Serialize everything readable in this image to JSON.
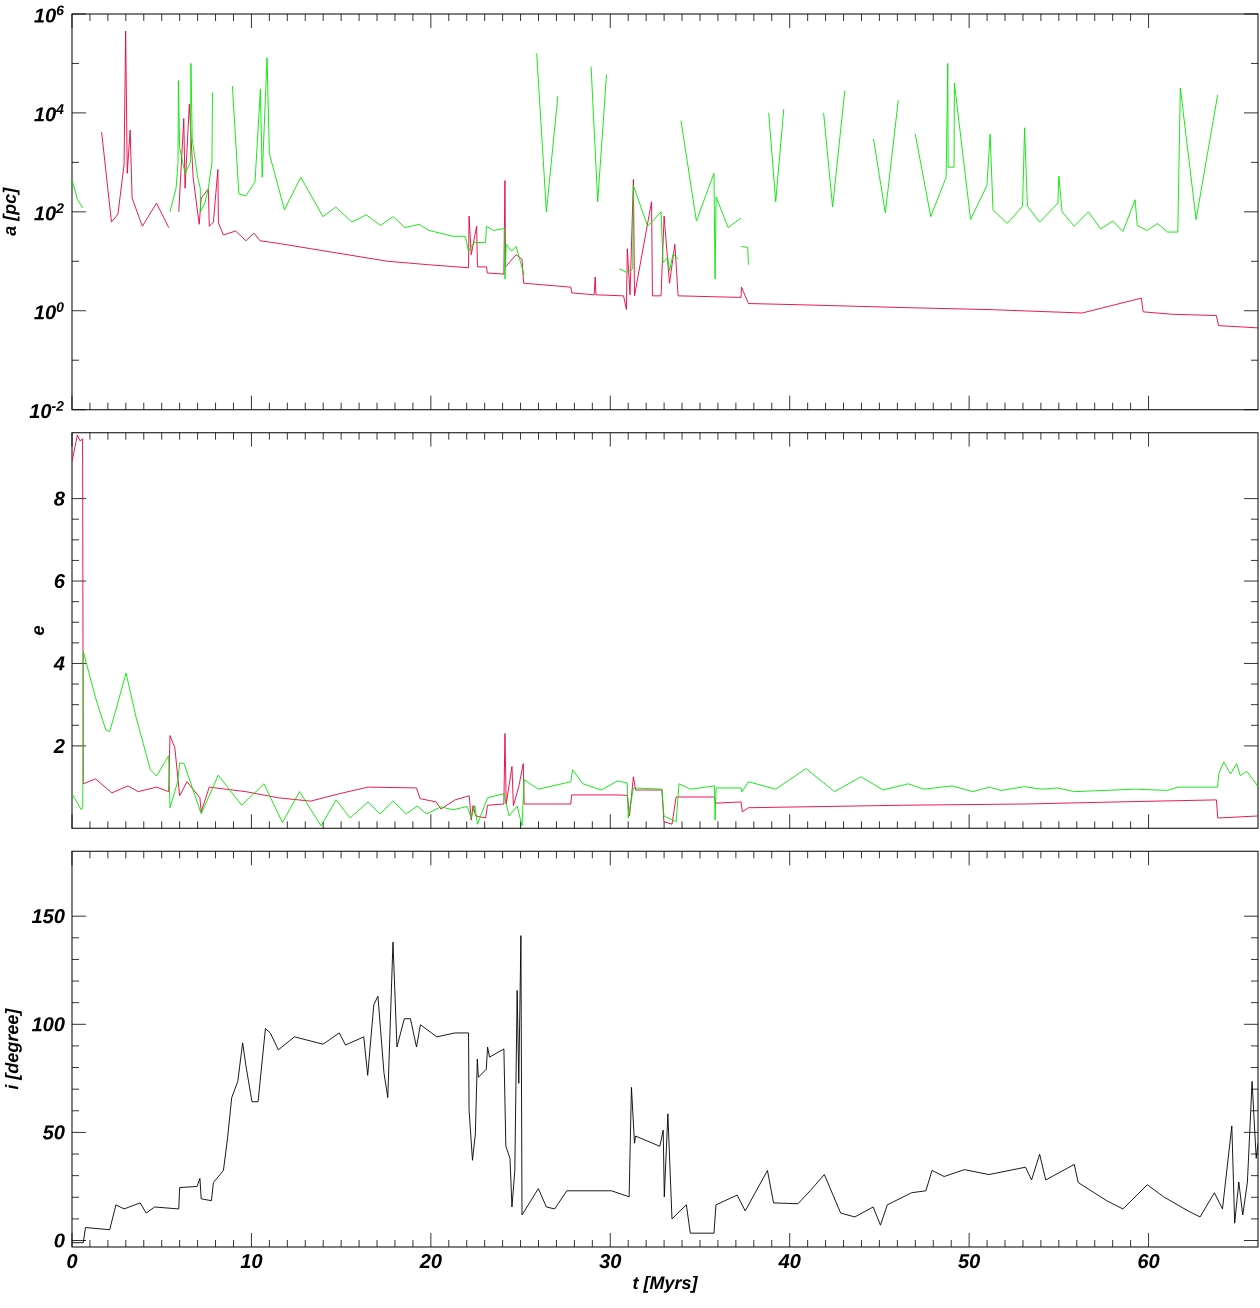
{
  "chart_data": [
    {
      "type": "line",
      "ylabel": "a [pc]",
      "log": true,
      "tick_labels": "y",
      "xlim": [
        0,
        66.1
      ],
      "xticks": [
        0,
        10,
        20,
        30,
        40,
        50,
        60
      ],
      "ylim": [
        0.01,
        1000000
      ],
      "yticks": [
        {
          "value": 0.01,
          "label": "10$^{-2}$"
        },
        {
          "value": 1,
          "label": "10$^{0}$"
        },
        {
          "value": 100,
          "label": "10$^{2}$"
        },
        {
          "value": 10000,
          "label": "10$^{4}$"
        },
        {
          "value": 1000000,
          "label": "10$^{6}$"
        }
      ],
      "series": [
        {
          "color": "#e6003c",
          "x": [
            1.65,
            2.2,
            2.56,
            2.9,
            2.99,
            3.08,
            3.24,
            3.35,
            3.92,
            4.71,
            5.39,
            5.7,
            5.95,
            6.23,
            6.3,
            6.54,
            6.75,
            7.09,
            7.2,
            7.6,
            7.65,
            7.88,
            8.13,
            8.16,
            8.44,
            9.12,
            9.69,
            10.14,
            10.48,
            11.5,
            13.3,
            15.35,
            17.6,
            19.9,
            22.1,
            22.13,
            22.25,
            22.55,
            22.6,
            23.1,
            23.15,
            24.07,
            24.13,
            24.16,
            24.75,
            25.08,
            25.17,
            27.8,
            27.85,
            29.1,
            29.16,
            29.2,
            30.74,
            30.9,
            30.95,
            31.1,
            31.29,
            31.35,
            32.3,
            32.35,
            32.83,
            33.0,
            33.3,
            33.6,
            33.78,
            37.29,
            37.31,
            37.7,
            41.3,
            46.3,
            51.3,
            56.3,
            59.6,
            59.7,
            61.3,
            63.78,
            63.9,
            66.1
          ],
          "values": [
            4100,
            62,
            90,
            880,
            450000,
            600,
            4500,
            190,
            51,
            150,
            48,
            null,
            100,
            7700,
            300,
            15000,
            500,
            56,
            190,
            290,
            51,
            62,
            720,
            60,
            34,
            41,
            26,
            37,
            26,
            23,
            18,
            13.6,
            10,
            8.5,
            7.4,
            82,
            13.6,
            51,
            7.7,
            7.7,
            5.8,
            5.5,
            430,
            7.7,
            13.6,
            11,
            3.6,
            3,
            2.3,
            2.1,
            4.8,
            2.1,
            2.0,
            1.06,
            18,
            2.1,
            450,
            2,
            160,
            2,
            2,
            82,
            3.6,
            22,
            2,
            1.86,
            3,
            1.4,
            1.3,
            1.16,
            1.05,
            0.9,
            1.8,
            0.95,
            0.85,
            0.8,
            0.5,
            0.45
          ]
        },
        {
          "color": "#00e600",
          "x": [
            0,
            0.3,
            0.6,
            0.7,
            5.46,
            5.8,
            5.91,
            5.93,
            6.0,
            6.3,
            6.6,
            6.63,
            6.7,
            7.0,
            7.15,
            7.16,
            7.4,
            7.6,
            7.8,
            7.83,
            7.9,
            8.94,
            9.3,
            9.69,
            10.2,
            10.5,
            10.6,
            10.87,
            11.0,
            11.84,
            12.75,
            13.99,
            14.7,
            15.6,
            16.4,
            17.2,
            17.9,
            18.55,
            19.35,
            19.9,
            21.24,
            21.92,
            22.1,
            22.4,
            23.05,
            23.1,
            23.5,
            24.1,
            24.13,
            24.2,
            24.5,
            24.75,
            25.2,
            25.5,
            25.9,
            26.44,
            27.08,
            28.0,
            28.93,
            29.3,
            29.79,
            30.45,
            30.5,
            30.9,
            31.25,
            31.29,
            32.08,
            32.83,
            32.94,
            33.2,
            33.3,
            33.5,
            33.8,
            33.88,
            33.94,
            34.8,
            35.78,
            35.84,
            35.9,
            36.57,
            37.29,
            37.3,
            37.31,
            37.66,
            37.7,
            38.2,
            38.83,
            39.22,
            39.67,
            40.3,
            41.89,
            42.39,
            43.07,
            43.8,
            44.67,
            45.33,
            46.05,
            46.5,
            47.0,
            47.86,
            48.72,
            48.81,
            48.83,
            49.16,
            49.18,
            50.08,
            50.99,
            51.17,
            51.33,
            52.12,
            52.98,
            53.09,
            53.25,
            53.93,
            54.95,
            55.0,
            55.18,
            55.86,
            56.65,
            57.33,
            58.01,
            58.57,
            59.25,
            59.37,
            59.93,
            60.5,
            61.06,
            61.63,
            61.77,
            62.65,
            63.85
          ],
          "values": [
            450,
            180,
            120,
            null,
            100,
            300,
            1000,
            45000,
            2000,
            600,
            1000,
            100000,
            3000,
            500,
            300,
            100,
            150,
            300,
            1000,
            26000,
            null,
            35000,
            230,
            210,
            400,
            30000,
            500,
            130000,
            1500,
            110,
            500,
            80,
            125,
            62,
            87,
            53,
            80,
            48,
            56,
            42,
            32,
            32,
            16,
            24,
            24,
            51,
            42,
            46,
            4.4,
            22,
            16,
            20,
            5.3,
            null,
            160000,
            100,
            22000,
            null,
            87000,
            160,
            60000,
            null,
            7,
            6,
            7,
            340,
            51,
            100,
            9.3,
            12,
            6.4,
            14,
            11,
            null,
            7000,
            65,
            600,
            4.4,
            200,
            48,
            75,
            null,
            20,
            19,
            8.5,
            null,
            10000,
            160,
            12000,
            null,
            10000,
            125,
            28000,
            null,
            3000,
            95,
            18000,
            null,
            3700,
            80,
            500,
            100000,
            800,
            800,
            40000,
            70,
            340,
            3700,
            110,
            58,
            130,
            5000,
            130,
            62,
            150,
            530,
            100,
            51,
            100,
            45,
            65,
            40,
            175,
            53,
            42,
            58,
            39,
            39,
            32000,
            70,
            23000
          ]
        }
      ]
    },
    {
      "type": "line",
      "ylabel": "e",
      "tick_labels": "y",
      "xlim": [
        0,
        66.1
      ],
      "xticks": [
        0,
        10,
        20,
        30,
        40,
        50,
        60
      ],
      "ylim": [
        0,
        9.6
      ],
      "yticks": [
        2,
        4,
        6,
        8
      ],
      "series": [
        {
          "color": "#e6003c",
          "x": [
            0,
            0.3,
            0.45,
            0.59,
            0.63,
            1.31,
            2.22,
            3.12,
            3.69,
            4.71,
            5.39,
            5.46,
            5.73,
            6.0,
            6.41,
            7.13,
            7.2,
            7.65,
            9.69,
            11.5,
            13.3,
            14.9,
            16.5,
            19.2,
            19.4,
            20.3,
            20.56,
            21.35,
            22.14,
            22.25,
            22.35,
            22.5,
            23.05,
            23.16,
            24.07,
            24.13,
            24.2,
            24.52,
            24.6,
            24.9,
            25.15,
            25.2,
            27.8,
            27.85,
            30.4,
            30.95,
            31.07,
            31.29,
            31.41,
            32.88,
            32.99,
            33.44,
            33.67,
            35.81,
            35.86,
            37.29,
            37.36,
            37.7,
            46.3,
            53.1,
            59.3,
            63.78,
            63.86,
            66.1
          ],
          "values": [
            8.9,
            9.54,
            9.4,
            9.45,
            1.08,
            1.2,
            0.86,
            1.03,
            0.89,
            1.0,
            0.89,
            2.25,
            1.96,
            0.79,
            1.13,
            0.74,
            0.4,
            1.0,
            0.89,
            0.74,
            0.66,
            0.84,
            1.0,
            0.98,
            0.72,
            0.64,
            0.47,
            0.69,
            0.79,
            0.2,
            0.55,
            0.3,
            0.25,
            0.56,
            0.59,
            2.3,
            0.59,
            1.5,
            0.55,
            1.01,
            1.57,
            0.59,
            0.59,
            0.81,
            0.81,
            0.8,
            0.3,
            1.25,
            0.93,
            0.93,
            0.16,
            0.1,
            0.76,
            0.76,
            0.61,
            0.64,
            0.4,
            0.5,
            0.56,
            0.59,
            0.65,
            0.69,
            0.25,
            0.3
          ]
        },
        {
          "color": "#00e600",
          "x": [
            0,
            0.52,
            0.6,
            0.63,
            1.31,
            1.88,
            2.1,
            2.45,
            3.01,
            3.58,
            4.37,
            4.71,
            5.39,
            5.46,
            5.89,
            6.0,
            6.25,
            7.2,
            8.15,
            9.46,
            10.7,
            11.73,
            12.68,
            13.88,
            14.72,
            15.5,
            16.5,
            17.16,
            17.9,
            18.63,
            19.24,
            19.76,
            20.56,
            21.24,
            22.03,
            22.25,
            22.45,
            22.6,
            23.16,
            24.07,
            24.36,
            24.81,
            25.08,
            25.2,
            25.99,
            27.8,
            27.9,
            28.48,
            29.5,
            30.4,
            30.95,
            31.0,
            31.29,
            32.88,
            32.99,
            33.67,
            33.83,
            34.46,
            35.81,
            35.84,
            35.9,
            37.29,
            37.33,
            37.7,
            39.22,
            40.91,
            42.5,
            43.97,
            45.21,
            46.61,
            47.48,
            49.06,
            50.2,
            51.15,
            51.78,
            53.09,
            54.05,
            54.95,
            55.86,
            59.25,
            61.06,
            61.63,
            63.85,
            63.91,
            64.19,
            64.57,
            64.91,
            65.11,
            65.48,
            66.0,
            66.1
          ],
          "values": [
            0.84,
            0.45,
            0.5,
            4.29,
            3.17,
            2.39,
            2.35,
            2.88,
            3.77,
            2.68,
            1.42,
            1.27,
            1.76,
            0.5,
            1.13,
            1.59,
            1.57,
            0.35,
            1.29,
            0.56,
            1.08,
            0.14,
            0.89,
            0.06,
            0.69,
            0.25,
            0.64,
            0.35,
            0.66,
            0.35,
            0.54,
            0.35,
            0.52,
            0.45,
            0.53,
            0.25,
            0.55,
            0.1,
            0.74,
            0.84,
            0.3,
            0.54,
            0.06,
            1.18,
            0.95,
            1.13,
            1.42,
            1.08,
            0.93,
            1.15,
            1.1,
            0.25,
            0.98,
            0.95,
            0.3,
            0.16,
            1.08,
            0.95,
            1.03,
            0.2,
            0.98,
            0.98,
            0.88,
            1.13,
            0.95,
            1.45,
            0.89,
            1.25,
            0.93,
            1.08,
            0.95,
            1.03,
            0.89,
            1.0,
            0.92,
            1.01,
            0.95,
            0.98,
            0.89,
            0.95,
            0.92,
            1.0,
            1.0,
            1.32,
            1.61,
            1.32,
            1.57,
            1.28,
            1.38,
            1.08,
            1.0
          ]
        }
      ]
    },
    {
      "type": "line",
      "ylabel": "i [degree]",
      "xlabel": "t [Myrs]",
      "xlim": [
        0,
        66.1
      ],
      "xticks": [
        0,
        10,
        20,
        30,
        40,
        50,
        60
      ],
      "ylim": [
        -3,
        180
      ],
      "yticks": [
        0,
        50,
        100,
        150
      ],
      "series": [
        {
          "color": "#000000",
          "x": [
            0,
            0.63,
            0.75,
            2.1,
            2.45,
            2.9,
            3.8,
            4.14,
            4.6,
            5.95,
            6.0,
            6.97,
            7.13,
            7.2,
            7.77,
            7.88,
            8.44,
            8.67,
            8.9,
            9.24,
            9.51,
            9.69,
            10.03,
            10.37,
            10.78,
            11.05,
            11.5,
            12.4,
            13.99,
            14.9,
            15.24,
            16.26,
            16.48,
            16.82,
            17.05,
            17.39,
            17.6,
            17.89,
            18.11,
            18.52,
            18.86,
            19.2,
            19.42,
            20.33,
            21.35,
            22.1,
            22.13,
            22.32,
            22.48,
            22.59,
            22.65,
            23.09,
            23.16,
            23.27,
            24.07,
            24.18,
            24.41,
            24.52,
            24.68,
            24.81,
            24.9,
            25.02,
            25.08,
            25.99,
            26.44,
            26.9,
            27.58,
            30.07,
            31.05,
            31.18,
            31.35,
            31.41,
            32.76,
            32.95,
            33.01,
            33.21,
            33.44,
            34.24,
            34.46,
            35.78,
            35.89,
            37.07,
            37.52,
            38.76,
            39.1,
            40.46,
            41.14,
            41.93,
            42.84,
            43.63,
            44.65,
            45.06,
            45.44,
            46.8,
            47.59,
            47.93,
            48.61,
            49.74,
            51.1,
            53.14,
            53.48,
            53.93,
            54.27,
            55.86,
            56.08,
            57.67,
            58.57,
            59.93,
            60.84,
            62.2,
            62.87,
            63.67,
            64.12,
            64.64,
            64.8,
            65.03,
            65.25,
            65.51,
            65.77,
            66.0,
            66.1
          ],
          "values": [
            -1,
            -1,
            6,
            5,
            16.5,
            14.6,
            17.4,
            12.7,
            15.5,
            14.6,
            24.5,
            25,
            28.7,
            19.3,
            18.4,
            26.8,
            32.4,
            47.4,
            66,
            73.6,
            91.4,
            81,
            64.2,
            64.2,
            98,
            96,
            88.2,
            94.2,
            90.8,
            96,
            90.4,
            94.2,
            76.4,
            109,
            113,
            77.3,
            66.1,
            138,
            89.5,
            102.6,
            102.6,
            89.5,
            99.8,
            94.2,
            96,
            96,
            60.5,
            37.1,
            49.3,
            83.9,
            75.5,
            79.2,
            89.5,
            84.8,
            88.6,
            43.6,
            38,
            15.5,
            32.4,
            115.7,
            72.7,
            141,
            11.8,
            24,
            15.5,
            14.6,
            23,
            23,
            20.2,
            70.8,
            45,
            48.3,
            43.6,
            51,
            20.2,
            58.6,
            10,
            16.5,
            3.4,
            3.4,
            16.5,
            21,
            13.7,
            32.4,
            17.4,
            17,
            23,
            30.5,
            12.7,
            10.9,
            15.5,
            7.1,
            16.5,
            22.1,
            23,
            32.4,
            29.6,
            32.8,
            30.5,
            33.9,
            28,
            39.9,
            28,
            35.2,
            26.8,
            18.4,
            14.6,
            25.8,
            20.2,
            13.7,
            10.9,
            22.1,
            14.6,
            53,
            8,
            27,
            11.8,
            27,
            73.6,
            38,
            45
          ]
        }
      ]
    }
  ]
}
